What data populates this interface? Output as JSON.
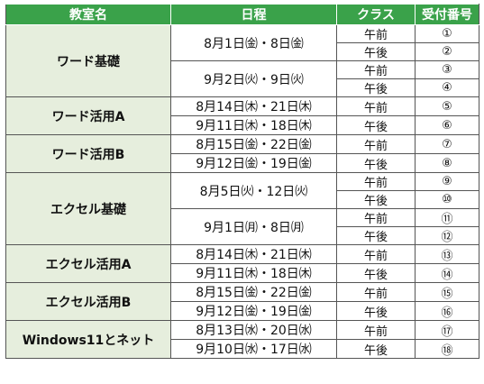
{
  "headers": {
    "classroom": "教室名",
    "schedule": "日程",
    "class": "クラス",
    "number": "受付番号"
  },
  "groups": [
    {
      "name": "ワード基礎",
      "schedules": [
        {
          "dates": "8月1日㈮・8日㈮",
          "sessions": [
            {
              "ampm": "午前",
              "number": "①"
            },
            {
              "ampm": "午後",
              "number": "②"
            }
          ]
        },
        {
          "dates": "9月2日㈫・9日㈫",
          "sessions": [
            {
              "ampm": "午前",
              "number": "③"
            },
            {
              "ampm": "午後",
              "number": "④"
            }
          ]
        }
      ]
    },
    {
      "name": "ワード活用A",
      "schedules": [
        {
          "dates": "8月14日㈭・21日㈭",
          "sessions": [
            {
              "ampm": "午前",
              "number": "⑤"
            }
          ]
        },
        {
          "dates": "9月11日㈭・18日㈭",
          "sessions": [
            {
              "ampm": "午後",
              "number": "⑥"
            }
          ]
        }
      ]
    },
    {
      "name": "ワード活用B",
      "schedules": [
        {
          "dates": "8月15日㈮・22日㈮",
          "sessions": [
            {
              "ampm": "午前",
              "number": "⑦"
            }
          ]
        },
        {
          "dates": "9月12日㈮・19日㈮",
          "sessions": [
            {
              "ampm": "午後",
              "number": "⑧"
            }
          ]
        }
      ]
    },
    {
      "name": "エクセル基礎",
      "schedules": [
        {
          "dates": "8月5日㈫・12日㈫",
          "sessions": [
            {
              "ampm": "午前",
              "number": "⑨"
            },
            {
              "ampm": "午後",
              "number": "⑩"
            }
          ]
        },
        {
          "dates": "9月1日㈪・8日㈪",
          "sessions": [
            {
              "ampm": "午前",
              "number": "⑪"
            },
            {
              "ampm": "午後",
              "number": "⑫"
            }
          ]
        }
      ]
    },
    {
      "name": "エクセル活用A",
      "schedules": [
        {
          "dates": "8月14日㈭・21日㈭",
          "sessions": [
            {
              "ampm": "午前",
              "number": "⑬"
            }
          ]
        },
        {
          "dates": "9月11日㈭・18日㈭",
          "sessions": [
            {
              "ampm": "午後",
              "number": "⑭"
            }
          ]
        }
      ]
    },
    {
      "name": "エクセル活用B",
      "schedules": [
        {
          "dates": "8月15日㈮・22日㈮",
          "sessions": [
            {
              "ampm": "午前",
              "number": "⑮"
            }
          ]
        },
        {
          "dates": "9月12日㈮・19日㈮",
          "sessions": [
            {
              "ampm": "午後",
              "number": "⑯"
            }
          ]
        }
      ]
    },
    {
      "name": "Windows11とネット",
      "schedules": [
        {
          "dates": "8月13日㈬・20日㈬",
          "sessions": [
            {
              "ampm": "午前",
              "number": "⑰"
            }
          ]
        },
        {
          "dates": "9月10日㈬・17日㈬",
          "sessions": [
            {
              "ampm": "午後",
              "number": "⑱"
            }
          ]
        }
      ]
    }
  ]
}
